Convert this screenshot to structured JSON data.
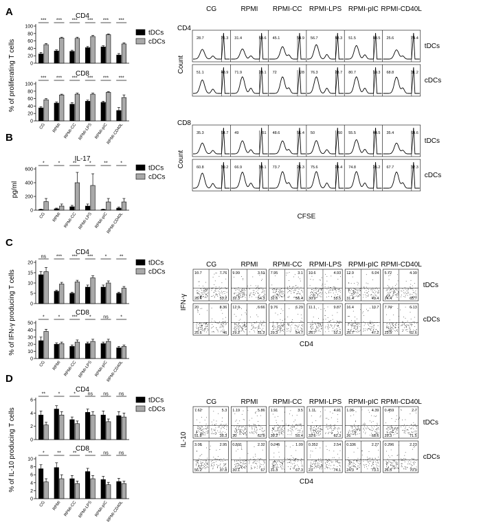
{
  "figure": {
    "bar_conditions": [
      "CG",
      "RPMI",
      "RPMI-CC",
      "RPMI-LPS",
      "RPMI-pIC",
      "RPMI-CD40L"
    ],
    "flow_conditions": [
      "CG",
      "RPMI",
      "RPMI-CC",
      "RPMI-LPS",
      "RPMI-pIC",
      "RPMI-CD40L"
    ],
    "legend": {
      "t": "tDCs",
      "c": "cDCs"
    },
    "colors": {
      "tDCs": "#000000",
      "cDCs": "#a9a9a9"
    },
    "row_labels": {
      "t": "tDCs",
      "c": "cDCs"
    }
  },
  "chart_data": [
    {
      "panel": "A",
      "type": "bar",
      "ylabel": "% of proliferating T cells",
      "subplots": [
        {
          "title": "CD4",
          "ylim": [
            0,
            100
          ],
          "yticks": [
            0,
            20,
            40,
            60,
            80,
            100
          ],
          "series": [
            {
              "name": "tDCs",
              "values": [
                25,
                33,
                32,
                42,
                44,
                22
              ],
              "err": [
                4,
                3,
                3,
                3,
                3,
                4
              ]
            },
            {
              "name": "cDCs",
              "values": [
                50,
                68,
                67,
                72,
                77,
                52
              ],
              "err": [
                3,
                2,
                3,
                3,
                2,
                3
              ]
            }
          ],
          "sig": [
            "***",
            "***",
            "***",
            "***",
            "***",
            "***"
          ]
        },
        {
          "title": "CD8",
          "ylim": [
            0,
            100
          ],
          "yticks": [
            0,
            20,
            40,
            60,
            80,
            100
          ],
          "series": [
            {
              "name": "tDCs",
              "values": [
                35,
                48,
                45,
                53,
                50,
                28
              ],
              "err": [
                3,
                3,
                4,
                3,
                3,
                8
              ]
            },
            {
              "name": "cDCs",
              "values": [
                57,
                70,
                72,
                72,
                77,
                63
              ],
              "err": [
                3,
                2,
                3,
                3,
                2,
                7
              ]
            }
          ],
          "sig": [
            "***",
            "***",
            "***",
            "***",
            "***",
            "***"
          ]
        }
      ]
    },
    {
      "panel": "B",
      "type": "bar",
      "ylabel": "pg/ml",
      "subplots": [
        {
          "title": "IL-17",
          "ylim": [
            0,
            600
          ],
          "yticks": [
            0,
            200,
            400,
            600
          ],
          "series": [
            {
              "name": "tDCs",
              "values": [
                10,
                20,
                50,
                60,
                10,
                30
              ],
              "err": [
                5,
                10,
                20,
                30,
                5,
                15
              ]
            },
            {
              "name": "cDCs",
              "values": [
                125,
                60,
                400,
                360,
                120,
                120
              ],
              "err": [
                45,
                30,
                150,
                170,
                50,
                50
              ]
            }
          ],
          "sig": [
            "*",
            "*",
            "**",
            "*",
            "**",
            "*"
          ]
        }
      ]
    },
    {
      "panel": "C",
      "type": "bar",
      "ylabel": "% of IFN-γ producing T cells",
      "subplots": [
        {
          "title": "CD4",
          "ylim": [
            0,
            20
          ],
          "yticks": [
            0,
            5,
            10,
            15,
            20
          ],
          "series": [
            {
              "name": "tDCs",
              "values": [
                14,
                6,
                5,
                8,
                8,
                5
              ],
              "err": [
                1.5,
                0.5,
                0.5,
                1,
                1,
                0.5
              ]
            },
            {
              "name": "cDCs",
              "values": [
                15.5,
                9.5,
                10.5,
                12.5,
                10,
                7.5
              ],
              "err": [
                2,
                0.8,
                0.8,
                1,
                1,
                0.8
              ]
            }
          ],
          "sig": [
            "ns",
            "***",
            "***",
            "***",
            "*",
            "**"
          ]
        },
        {
          "title": "CD8",
          "ylim": [
            0,
            50
          ],
          "yticks": [
            0,
            10,
            20,
            30,
            40,
            50
          ],
          "series": [
            {
              "name": "tDCs",
              "values": [
                25,
                20,
                17,
                21,
                21,
                15
              ],
              "err": [
                5,
                2,
                2,
                2,
                2,
                2
              ]
            },
            {
              "name": "cDCs",
              "values": [
                38,
                21,
                23,
                24,
                24,
                17
              ],
              "err": [
                3,
                2,
                3,
                3,
                3,
                2
              ]
            }
          ],
          "sig": [
            "*",
            "*",
            "***",
            "*",
            "ns",
            "*"
          ]
        }
      ]
    },
    {
      "panel": "D",
      "type": "bar",
      "ylabel": "% of  IL-10 producing T cells",
      "subplots": [
        {
          "title": "CD4",
          "ylim": [
            0,
            6
          ],
          "yticks": [
            0,
            2,
            4,
            6
          ],
          "series": [
            {
              "name": "tDCs",
              "values": [
                3.7,
                4.6,
                3.0,
                4.1,
                3.7,
                3.6
              ],
              "err": [
                0.6,
                0.5,
                0.4,
                0.5,
                0.6,
                0.6
              ]
            },
            {
              "name": "cDCs",
              "values": [
                2.2,
                3.7,
                2.4,
                3.7,
                2.7,
                3.4
              ],
              "err": [
                0.4,
                0.5,
                0.4,
                0.5,
                0.4,
                0.6
              ]
            }
          ],
          "sig": [
            "**",
            "*",
            "*",
            "ns",
            "ns",
            "ns"
          ]
        },
        {
          "title": "CD8",
          "ylim": [
            0,
            10
          ],
          "yticks": [
            0,
            2,
            4,
            6,
            8,
            10
          ],
          "series": [
            {
              "name": "tDCs",
              "values": [
                7.5,
                7.8,
                5.0,
                6.8,
                4.8,
                4.3
              ],
              "err": [
                1.0,
                1.2,
                0.8,
                0.8,
                0.8,
                0.8
              ]
            },
            {
              "name": "cDCs",
              "values": [
                4.2,
                5.0,
                3.8,
                5.0,
                3.5,
                3.8
              ],
              "err": [
                0.8,
                1.0,
                0.6,
                0.8,
                0.6,
                0.6
              ]
            }
          ],
          "sig": [
            "*",
            "**",
            "**",
            "**",
            "ns",
            "ns"
          ]
        }
      ]
    },
    {
      "panel": "A-right",
      "type": "histogram",
      "xlabel": "CFSE",
      "ylabel": "Count",
      "groups": [
        {
          "title": "CD4",
          "rows": [
            {
              "row": "tDCs",
              "left": [
                "28.7",
                "31.4",
                "45.1",
                "56.7",
                "51.5",
                "25.6"
              ],
              "right": [
                "71.3",
                "68.6",
                "54.9",
                "43.3",
                "48.5",
                "74.4"
              ]
            },
            {
              "row": "cDCs",
              "left": [
                "51.1",
                "71.9",
                "72",
                "76.3",
                "80.7",
                "68.8"
              ],
              "right": [
                "48.9",
                "28.1",
                "28",
                "23.7",
                "19.3",
                "31.2"
              ]
            }
          ]
        },
        {
          "title": "CD8",
          "rows": [
            {
              "row": "tDCs",
              "left": [
                "35.3",
                "49",
                "48.6",
                "50",
                "55.5",
                "35.4"
              ],
              "right": [
                "64.7",
                "51",
                "51.4",
                "50",
                "44.5",
                "64.6"
              ]
            },
            {
              "row": "cDCs",
              "left": [
                "60.8",
                "66.9",
                "73.7",
                "75.6",
                "74.8",
                "67.7"
              ],
              "right": [
                "39.2",
                "33.1",
                "26.3",
                "24.4",
                "25.2",
                "32.3"
              ]
            }
          ]
        }
      ]
    },
    {
      "panel": "C-right",
      "type": "scatter",
      "xlabel": "CD4",
      "ylabel": "IFN-γ",
      "rows": [
        {
          "row": "tDCs",
          "q": [
            [
              "10.7",
              "7.76",
              "28.4",
              "53.2"
            ],
            [
              "9.99",
              "3.51",
              "32.3",
              "54.3"
            ],
            [
              "7.95",
              "3.1",
              "32.6",
              "56.4"
            ],
            [
              "10.6",
              "4.93",
              "30.9",
              "53.5"
            ],
            [
              "12.9",
              "6.24",
              "31.4",
              "49.4"
            ],
            [
              "5.72",
              "4.19",
              "24.4",
              "65.7"
            ]
          ]
        },
        {
          "row": "cDCs",
          "q": [
            [
              "20",
              "8.36",
              "25.6",
              "46"
            ],
            [
              "12.9",
              "6.66",
              "29.2",
              "51.2"
            ],
            [
              "9.76",
              "6.29",
              "29.3",
              "54.7"
            ],
            [
              "11.1",
              "9.87",
              "26.7",
              "52.3"
            ],
            [
              "16.4",
              "10.7",
              "25.7",
              "47.2"
            ],
            [
              "7.74",
              "6.13",
              "23.5",
              "62.6"
            ]
          ]
        }
      ]
    },
    {
      "panel": "D-right",
      "type": "scatter",
      "xlabel": "CD4",
      "ylabel": "IL-10",
      "rows": [
        {
          "row": "tDCs",
          "q": [
            [
              "7.62",
              "5.3",
              "51.8",
              "35.3"
            ],
            [
              "1.19",
              "5.86",
              "30",
              "62.9"
            ],
            [
              "1.91",
              "3.5",
              "39.2",
              "55.4"
            ],
            [
              "1.11",
              "4.01",
              "32.6",
              "62.3"
            ],
            [
              "1.06",
              "4.39",
              "26",
              "68.6"
            ],
            [
              "0.459",
              "2.7",
              "25.3",
              "71.5"
            ]
          ]
        },
        {
          "row": "cDCs",
          "q": [
            [
              "3.08",
              "2.95",
              "56.2",
              "37.8"
            ],
            [
              "0.591",
              "2.32",
              "30.1",
              "67"
            ],
            [
              "0.245",
              "1.09",
              "31.3",
              "67.3"
            ],
            [
              "0.352",
              "2.54",
              "23",
              "74.1"
            ],
            [
              "0.336",
              "2.27",
              "24.3",
              "73.1"
            ],
            [
              "0.296",
              "2.23",
              "26.5",
              "70.9"
            ]
          ]
        }
      ]
    }
  ]
}
